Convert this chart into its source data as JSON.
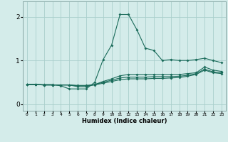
{
  "xlabel": "Humidex (Indice chaleur)",
  "ylabel": "",
  "bg_color": "#d4ecea",
  "grid_color": "#aacfcc",
  "line_color": "#1a6b5a",
  "x": [
    0,
    1,
    2,
    3,
    4,
    5,
    6,
    7,
    8,
    9,
    10,
    11,
    12,
    13,
    14,
    15,
    16,
    17,
    18,
    19,
    20,
    21,
    22,
    23
  ],
  "series1": [
    0.45,
    0.45,
    0.45,
    0.45,
    0.42,
    0.35,
    0.35,
    0.35,
    0.5,
    1.02,
    1.35,
    2.05,
    2.05,
    1.7,
    1.28,
    1.23,
    1.0,
    1.02,
    1.0,
    1.0,
    1.02,
    1.05,
    1.0,
    0.95
  ],
  "series2": [
    0.45,
    0.45,
    0.44,
    0.44,
    0.44,
    0.44,
    0.4,
    0.4,
    0.45,
    0.52,
    0.58,
    0.65,
    0.68,
    0.68,
    0.68,
    0.68,
    0.68,
    0.68,
    0.68,
    0.7,
    0.72,
    0.85,
    0.78,
    0.75
  ],
  "series3": [
    0.45,
    0.45,
    0.44,
    0.44,
    0.44,
    0.44,
    0.43,
    0.43,
    0.45,
    0.5,
    0.55,
    0.6,
    0.62,
    0.62,
    0.62,
    0.63,
    0.63,
    0.63,
    0.64,
    0.66,
    0.7,
    0.8,
    0.74,
    0.72
  ],
  "series4": [
    0.45,
    0.45,
    0.44,
    0.44,
    0.44,
    0.44,
    0.42,
    0.42,
    0.44,
    0.48,
    0.52,
    0.56,
    0.58,
    0.58,
    0.58,
    0.59,
    0.59,
    0.6,
    0.61,
    0.64,
    0.68,
    0.78,
    0.72,
    0.7
  ],
  "ylim": [
    -0.15,
    2.35
  ],
  "xlim": [
    -0.5,
    23.5
  ],
  "yticks": [
    0,
    1,
    2
  ],
  "xticks": [
    0,
    1,
    2,
    3,
    4,
    5,
    6,
    7,
    8,
    9,
    10,
    11,
    12,
    13,
    14,
    15,
    16,
    17,
    18,
    19,
    20,
    21,
    22,
    23
  ],
  "xlabel_fontsize": 6.0,
  "tick_fontsize": 4.5,
  "ytick_fontsize": 6.5,
  "marker_size": 2.0,
  "line_width": 0.8
}
